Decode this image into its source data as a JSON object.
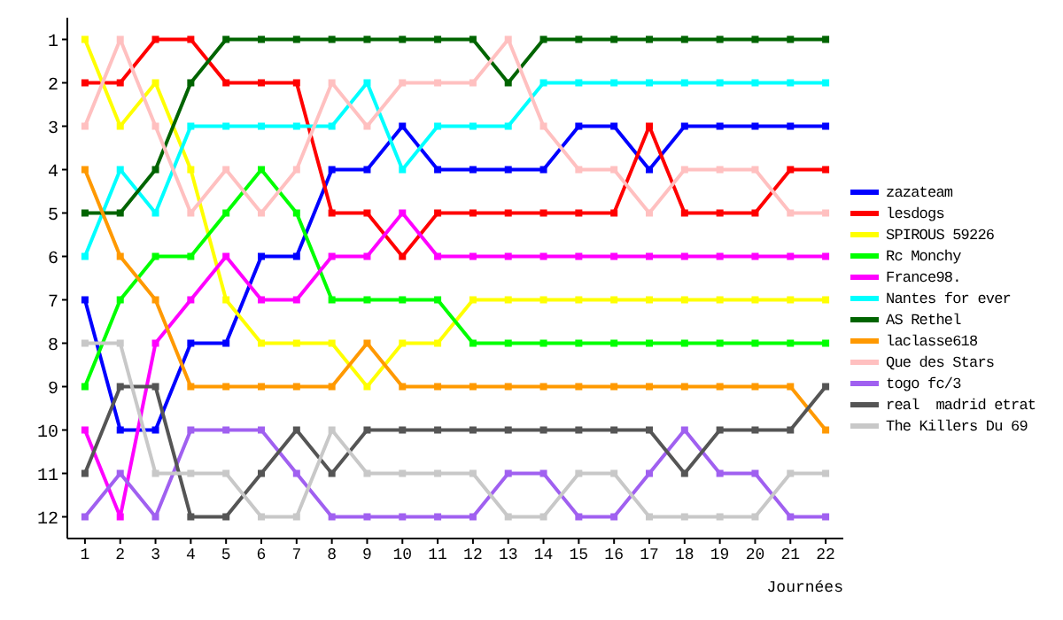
{
  "chart_data": {
    "type": "line",
    "xlabel": "Journées",
    "x": [
      1,
      2,
      3,
      4,
      5,
      6,
      7,
      8,
      9,
      10,
      11,
      12,
      13,
      14,
      15,
      16,
      17,
      18,
      19,
      20,
      21,
      22
    ],
    "xlim": [
      0.5,
      22.5
    ],
    "xticks": [
      1,
      2,
      3,
      4,
      5,
      6,
      7,
      8,
      9,
      10,
      11,
      12,
      13,
      14,
      15,
      16,
      17,
      18,
      19,
      20,
      21,
      22
    ],
    "ylim": [
      12.5,
      0.5
    ],
    "yticks": [
      1,
      2,
      3,
      4,
      5,
      6,
      7,
      8,
      9,
      10,
      11,
      12
    ],
    "legend": "right",
    "marker": "square",
    "line_style": "solid",
    "series": [
      {
        "name": "zazateam",
        "color": "#0000ff",
        "values": [
          7,
          10,
          10,
          8,
          8,
          6,
          6,
          4,
          4,
          3,
          4,
          4,
          4,
          4,
          3,
          3,
          4,
          3,
          3,
          3,
          3,
          3
        ]
      },
      {
        "name": "lesdogs",
        "color": "#ff0000",
        "values": [
          2,
          2,
          1,
          1,
          2,
          2,
          2,
          5,
          5,
          6,
          5,
          5,
          5,
          5,
          5,
          5,
          3,
          5,
          5,
          5,
          4,
          4
        ]
      },
      {
        "name": "SPIROUS 59226",
        "color": "#ffff00",
        "values": [
          1,
          3,
          2,
          4,
          7,
          8,
          8,
          8,
          9,
          8,
          8,
          7,
          7,
          7,
          7,
          7,
          7,
          7,
          7,
          7,
          7,
          7
        ]
      },
      {
        "name": "Rc Monchy",
        "color": "#00ff00",
        "values": [
          9,
          7,
          6,
          6,
          5,
          4,
          5,
          7,
          7,
          7,
          7,
          8,
          8,
          8,
          8,
          8,
          8,
          8,
          8,
          8,
          8,
          8
        ]
      },
      {
        "name": "France98.",
        "color": "#ff00ff",
        "values": [
          10,
          12,
          8,
          7,
          6,
          7,
          7,
          6,
          6,
          5,
          6,
          6,
          6,
          6,
          6,
          6,
          6,
          6,
          6,
          6,
          6,
          6
        ]
      },
      {
        "name": "Nantes for ever",
        "color": "#00ffff",
        "values": [
          6,
          4,
          5,
          3,
          3,
          3,
          3,
          3,
          2,
          4,
          3,
          3,
          3,
          2,
          2,
          2,
          2,
          2,
          2,
          2,
          2,
          2
        ]
      },
      {
        "name": "AS Rethel",
        "color": "#006400",
        "values": [
          5,
          5,
          4,
          2,
          1,
          1,
          1,
          1,
          1,
          1,
          1,
          1,
          2,
          1,
          1,
          1,
          1,
          1,
          1,
          1,
          1,
          1
        ]
      },
      {
        "name": "laclasse618",
        "color": "#ff9900",
        "values": [
          4,
          6,
          7,
          9,
          9,
          9,
          9,
          9,
          8,
          9,
          9,
          9,
          9,
          9,
          9,
          9,
          9,
          9,
          9,
          9,
          9,
          10
        ]
      },
      {
        "name": "Que des Stars",
        "color": "#ffc0c0",
        "values": [
          3,
          1,
          3,
          5,
          4,
          5,
          4,
          2,
          3,
          2,
          2,
          2,
          1,
          3,
          4,
          4,
          5,
          4,
          4,
          4,
          5,
          5
        ]
      },
      {
        "name": "togo fc/3",
        "color": "#a060f0",
        "values": [
          12,
          11,
          12,
          10,
          10,
          10,
          11,
          12,
          12,
          12,
          12,
          12,
          11,
          11,
          12,
          12,
          11,
          10,
          11,
          11,
          12,
          12
        ]
      },
      {
        "name": "real  madrid etrat",
        "color": "#555555",
        "values": [
          11,
          9,
          9,
          12,
          12,
          11,
          10,
          11,
          10,
          10,
          10,
          10,
          10,
          10,
          10,
          10,
          10,
          11,
          10,
          10,
          10,
          9
        ]
      },
      {
        "name": "The Killers Du 69",
        "color": "#c8c8c8",
        "values": [
          8,
          8,
          11,
          11,
          11,
          12,
          12,
          10,
          11,
          11,
          11,
          11,
          12,
          12,
          11,
          11,
          12,
          12,
          12,
          12,
          11,
          11
        ]
      }
    ]
  }
}
